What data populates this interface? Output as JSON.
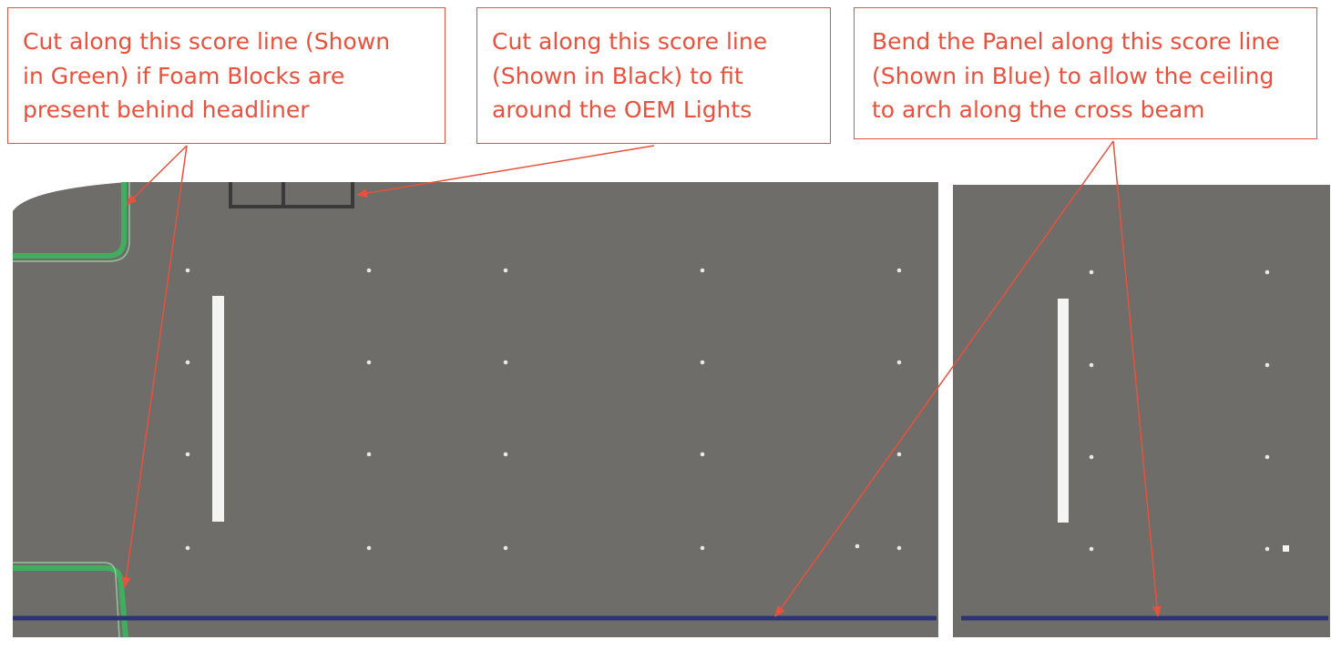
{
  "callouts": {
    "green_cut": {
      "lines": [
        "Cut along this score line (Shown",
        "in Green) if Foam Blocks are",
        "present behind headliner"
      ]
    },
    "black_cut": {
      "lines": [
        "Cut along this score line",
        "(Shown in Black) to fit",
        "around the OEM Lights"
      ]
    },
    "blue_bend": {
      "lines": [
        "Bend the Panel along this score line",
        "(Shown in Blue) to allow the ceiling",
        "to arch along the cross beam"
      ]
    }
  },
  "colors": {
    "annotation": "#e8513d",
    "panel": "#6f6d69",
    "green_score_line": "#3fae5f",
    "black_score_line": "#3a3a3a",
    "blue_score_line": "#2c3377",
    "slot": "#f4f4f2",
    "hole": "#e8e8e6"
  }
}
